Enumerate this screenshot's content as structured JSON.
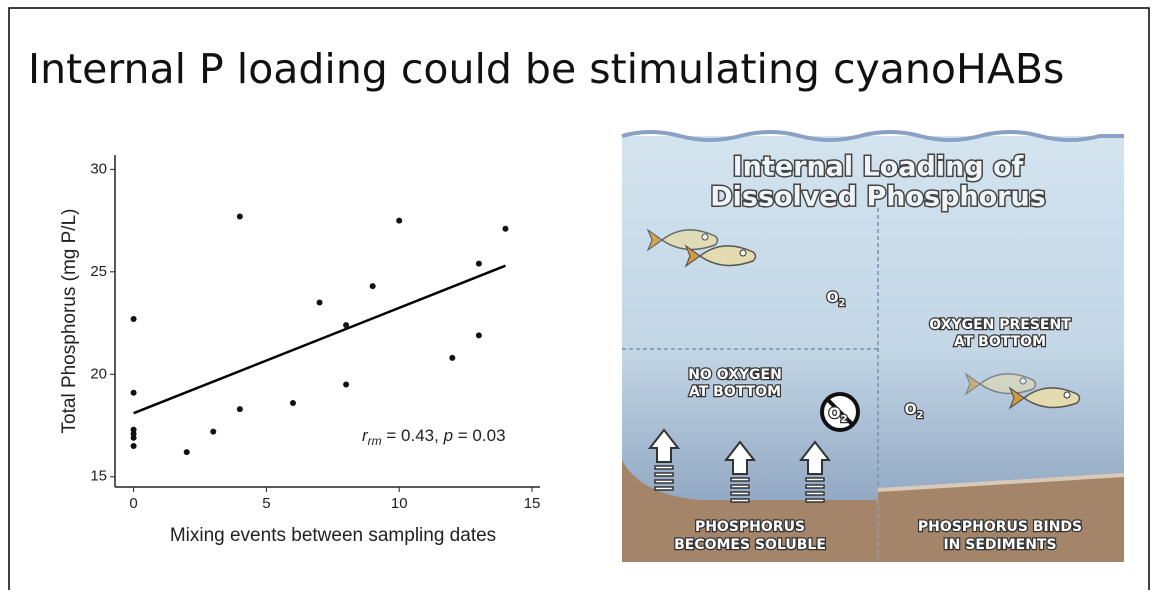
{
  "title": "Internal P loading could be stimulating cyanoHABs",
  "chart_data": {
    "type": "scatter",
    "x_label": "Mixing events between sampling dates",
    "y_label": "Total Phosphorus (mg P/L)",
    "x": [
      0,
      0,
      0,
      0,
      0,
      0,
      2,
      3,
      4,
      4,
      6,
      7,
      8,
      8,
      9,
      10,
      12,
      13,
      13,
      14
    ],
    "values": [
      22.7,
      19.1,
      17.3,
      17.1,
      16.9,
      16.5,
      16.2,
      17.2,
      27.7,
      18.3,
      18.6,
      23.5,
      22.4,
      19.5,
      24.3,
      27.5,
      20.8,
      25.4,
      21.9,
      27.1
    ],
    "color": "#111111",
    "trend": {
      "x": [
        0,
        14
      ],
      "y": [
        18.1,
        25.3
      ]
    },
    "annotation": [
      "r",
      "rm",
      " = 0.43, ",
      "p",
      " = 0.03"
    ],
    "xlim": [
      -0.7,
      15.3
    ],
    "ylim": [
      14.5,
      30.7
    ],
    "xticks": [
      0,
      5,
      10,
      15
    ],
    "yticks": [
      15,
      20,
      25,
      30
    ],
    "grid": false
  },
  "diagram": {
    "heading": [
      "Internal Loading of",
      "Dissolved Phosphorus"
    ],
    "oxygen": {
      "element": "O",
      "subscript": "2"
    },
    "oxygen_present": [
      "OXYGEN PRESENT",
      "AT BOTTOM"
    ],
    "no_oxygen": [
      "NO OXYGEN",
      "AT BOTTOM"
    ],
    "soluble": [
      "PHOSPHORUS",
      "BECOMES SOLUBLE"
    ],
    "binds": [
      "PHOSPHORUS BINDS",
      "IN SEDIMENTS"
    ]
  }
}
